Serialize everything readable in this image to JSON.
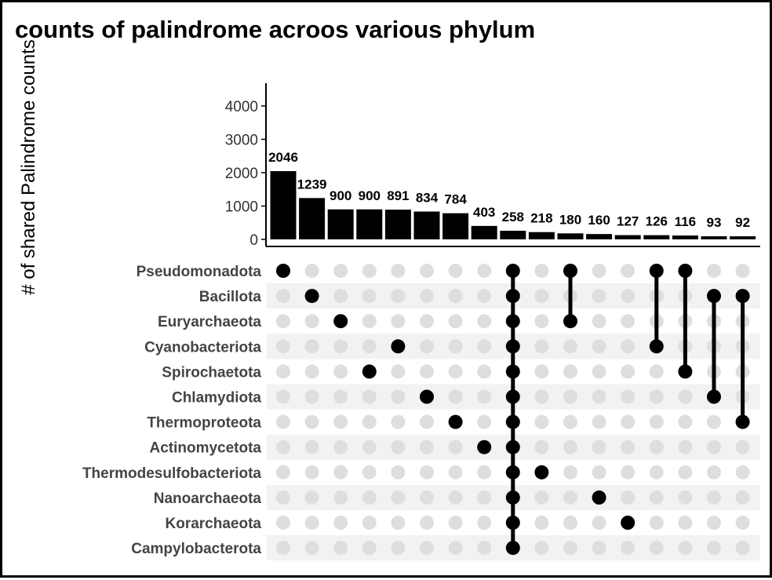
{
  "chart_data": {
    "type": "bar",
    "subtype": "upset",
    "title": "counts of palindrome acroos various phylum",
    "ylabel": "# of shared Palindrome counts",
    "ylim": [
      0,
      4500
    ],
    "yticks": [
      0,
      1000,
      2000,
      3000,
      4000
    ],
    "grid": false,
    "sets": [
      "Pseudomonadota",
      "Bacillota",
      "Euryarchaeota",
      "Cyanobacteriota",
      "Spirochaetota",
      "Chlamydiota",
      "Thermoproteota",
      "Actinomycetota",
      "Thermodesulfobacteriota",
      "Nanoarchaeota",
      "Korarchaeota",
      "Campylobacterota"
    ],
    "intersections": [
      {
        "value": 2046,
        "sets": [
          "Pseudomonadota"
        ]
      },
      {
        "value": 1239,
        "sets": [
          "Bacillota"
        ]
      },
      {
        "value": 900,
        "sets": [
          "Euryarchaeota"
        ]
      },
      {
        "value": 900,
        "sets": [
          "Spirochaetota"
        ]
      },
      {
        "value": 891,
        "sets": [
          "Cyanobacteriota"
        ]
      },
      {
        "value": 834,
        "sets": [
          "Chlamydiota"
        ]
      },
      {
        "value": 784,
        "sets": [
          "Thermoproteota"
        ]
      },
      {
        "value": 403,
        "sets": [
          "Actinomycetota"
        ]
      },
      {
        "value": 258,
        "sets": [
          "Pseudomonadota",
          "Bacillota",
          "Euryarchaeota",
          "Cyanobacteriota",
          "Spirochaetota",
          "Chlamydiota",
          "Thermoproteota",
          "Actinomycetota",
          "Thermodesulfobacteriota",
          "Nanoarchaeota",
          "Korarchaeota",
          "Campylobacterota"
        ]
      },
      {
        "value": 218,
        "sets": [
          "Thermodesulfobacteriota"
        ]
      },
      {
        "value": 180,
        "sets": [
          "Pseudomonadota",
          "Euryarchaeota"
        ]
      },
      {
        "value": 160,
        "sets": [
          "Nanoarchaeota"
        ]
      },
      {
        "value": 127,
        "sets": [
          "Korarchaeota"
        ]
      },
      {
        "value": 126,
        "sets": [
          "Pseudomonadota",
          "Cyanobacteriota"
        ]
      },
      {
        "value": 116,
        "sets": [
          "Pseudomonadota",
          "Spirochaetota"
        ]
      },
      {
        "value": 93,
        "sets": [
          "Bacillota",
          "Chlamydiota"
        ]
      },
      {
        "value": 92,
        "sets": [
          "Bacillota",
          "Thermoproteota"
        ]
      }
    ],
    "colors": {
      "bar": "#000000",
      "dot_active": "#000000",
      "dot_inactive": "#dedede",
      "stripe": "#f2f2f2",
      "axis": "#000000"
    }
  }
}
